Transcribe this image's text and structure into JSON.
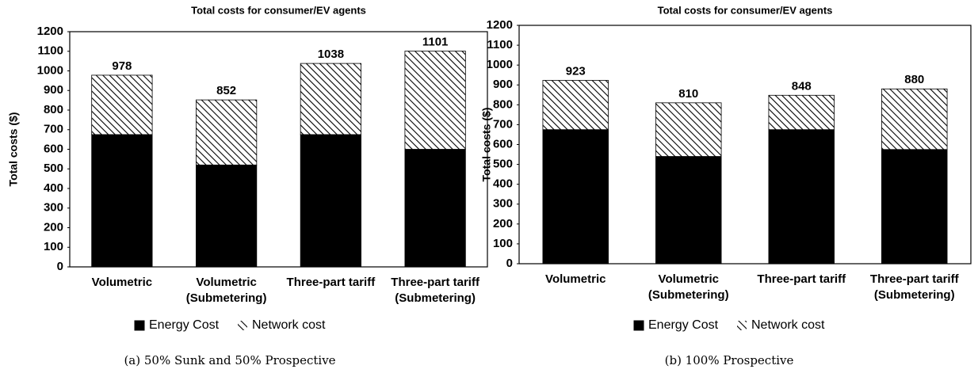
{
  "chart_data": [
    {
      "type": "stacked_bar",
      "title": "Total costs for consumer/EV agents",
      "ylabel": "Total costs ($)",
      "categories": [
        [
          "Volumetric"
        ],
        [
          "Volumetric",
          "(Submetering)"
        ],
        [
          "Three-part tariff"
        ],
        [
          "Three-part tariff",
          "(Submetering)"
        ]
      ],
      "series": [
        {
          "name": "Energy Cost",
          "color": "#000000",
          "pattern": "solid",
          "values": [
            675,
            520,
            675,
            600
          ]
        },
        {
          "name": "Network cost",
          "color": "#000000",
          "pattern": "hatch",
          "values": [
            303,
            332,
            363,
            501
          ]
        }
      ],
      "totals": [
        978,
        852,
        1038,
        1101
      ],
      "ylim": [
        0,
        1200
      ],
      "yticks": [
        0,
        100,
        200,
        300,
        400,
        500,
        600,
        700,
        800,
        900,
        1000,
        1100,
        1200
      ],
      "legend": "bottom",
      "caption": "(a) 50% Sunk and 50% Prospective"
    },
    {
      "type": "stacked_bar",
      "title": "Total costs for consumer/EV agents",
      "ylabel": "Total costs ($)",
      "categories": [
        [
          "Volumetric"
        ],
        [
          "Volumetric",
          "(Submetering)"
        ],
        [
          "Three-part tariff"
        ],
        [
          "Three-part tariff",
          "(Submetering)"
        ]
      ],
      "series": [
        {
          "name": "Energy Cost",
          "color": "#000000",
          "pattern": "solid",
          "values": [
            675,
            540,
            675,
            575
          ]
        },
        {
          "name": "Network cost",
          "color": "#000000",
          "pattern": "hatch",
          "values": [
            248,
            270,
            173,
            305
          ]
        }
      ],
      "totals": [
        923,
        810,
        848,
        880
      ],
      "ylim": [
        0,
        1200
      ],
      "yticks": [
        0,
        100,
        200,
        300,
        400,
        500,
        600,
        700,
        800,
        900,
        1000,
        1100,
        1200
      ],
      "legend": "bottom",
      "caption": "(b) 100% Prospective"
    }
  ]
}
